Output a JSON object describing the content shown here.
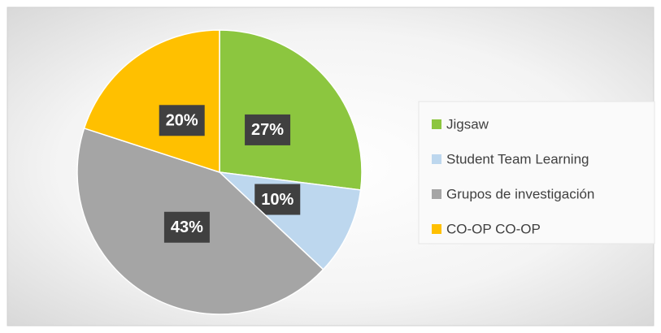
{
  "chart_data": {
    "type": "pie",
    "categories": [
      "Jigsaw",
      "Student Team Learning",
      "Grupos de investigación",
      "CO-OP CO-OP"
    ],
    "values": [
      27,
      10,
      43,
      20
    ],
    "value_labels": [
      "27%",
      "10%",
      "43%",
      "20%"
    ],
    "colors": [
      "#8cc63f",
      "#bdd7ee",
      "#a5a5a5",
      "#ffc000"
    ],
    "legend": "right"
  }
}
